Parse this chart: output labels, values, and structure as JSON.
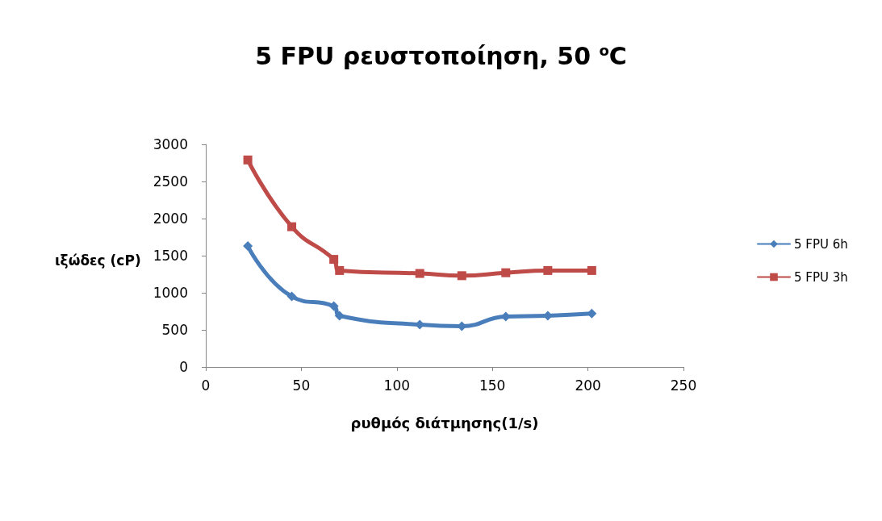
{
  "chart_data": {
    "type": "line",
    "title": "5 FPU ρευστοποίηση, 50 $^{o}$C",
    "xlabel": "ρυθμός διάτμησης(1/s)",
    "ylabel": "ιξώδες (cP)",
    "xlim": [
      0,
      250
    ],
    "xticks": [
      0,
      50,
      100,
      150,
      200,
      250
    ],
    "ylim": [
      0,
      3000
    ],
    "yticks": [
      0,
      500,
      1000,
      1500,
      2000,
      2500,
      3000
    ],
    "grid": false,
    "legend": "right",
    "series": [
      {
        "name": "5 FPU 6h",
        "color": "#4a7ebb",
        "marker": "diamond",
        "x": [
          22,
          45,
          67,
          70,
          112,
          134,
          157,
          179,
          202
        ],
        "values": [
          1630,
          950,
          820,
          690,
          570,
          550,
          680,
          690,
          720
        ]
      },
      {
        "name": "5 FPU 3h",
        "color": "#be4b48",
        "marker": "square",
        "x": [
          22,
          45,
          67,
          70,
          112,
          134,
          157,
          179,
          202
        ],
        "values": [
          2790,
          1890,
          1450,
          1300,
          1260,
          1230,
          1270,
          1300,
          1300
        ]
      }
    ]
  }
}
